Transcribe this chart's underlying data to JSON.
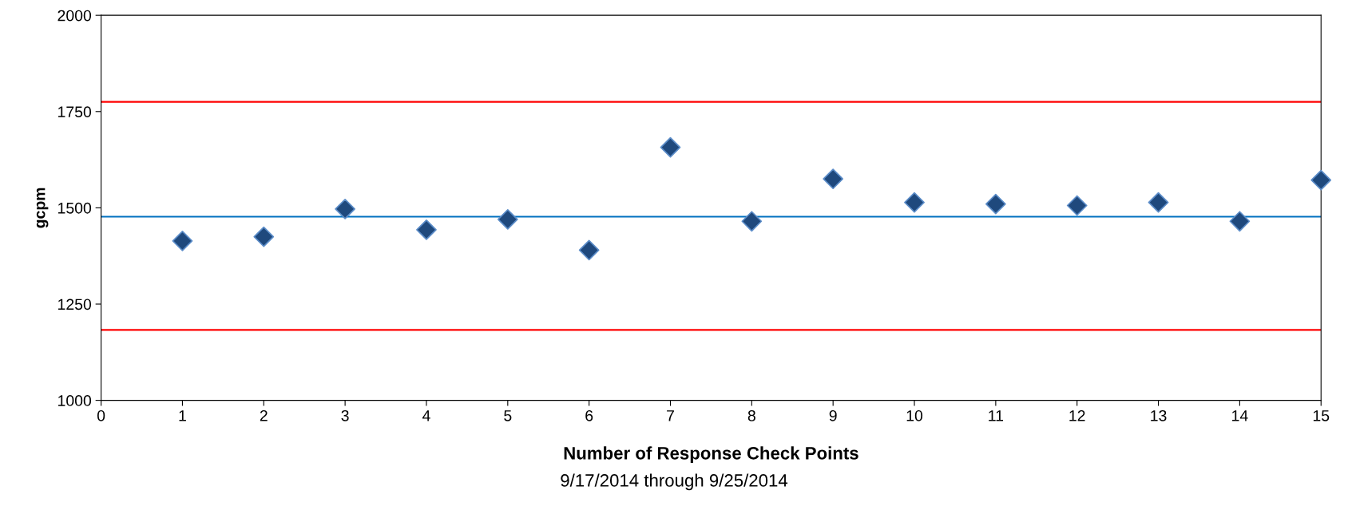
{
  "chart_data": {
    "type": "scatter",
    "xlabel": "Number of Response Check Points",
    "ylabel": "gcpm",
    "annotations": [
      "9/17/2014 through 9/25/2014"
    ],
    "x": [
      1,
      2,
      3,
      4,
      5,
      6,
      7,
      8,
      9,
      10,
      11,
      12,
      13,
      14,
      15
    ],
    "series": [
      {
        "color": "#1f497d",
        "values": [
          1414,
          1425,
          1497,
          1443,
          1470,
          1390,
          1657,
          1465,
          1575,
          1514,
          1510,
          1506,
          1514,
          1465,
          1572
        ]
      }
    ],
    "marker": "diamond",
    "grid": false,
    "xlim": [
      0,
      15
    ],
    "xticks": [
      0,
      1,
      2,
      3,
      4,
      5,
      6,
      7,
      8,
      9,
      10,
      11,
      12,
      13,
      14,
      15
    ],
    "ylim": [
      1000,
      2000
    ],
    "yticks": [
      1000,
      1250,
      1500,
      1750,
      2000
    ],
    "ref_lines": [
      {
        "axis": "y",
        "value": 1775,
        "color": "#ff0000"
      },
      {
        "axis": "y",
        "value": 1477,
        "color": "#0070c0"
      },
      {
        "axis": "y",
        "value": 1183,
        "color": "#ff0000"
      }
    ]
  }
}
